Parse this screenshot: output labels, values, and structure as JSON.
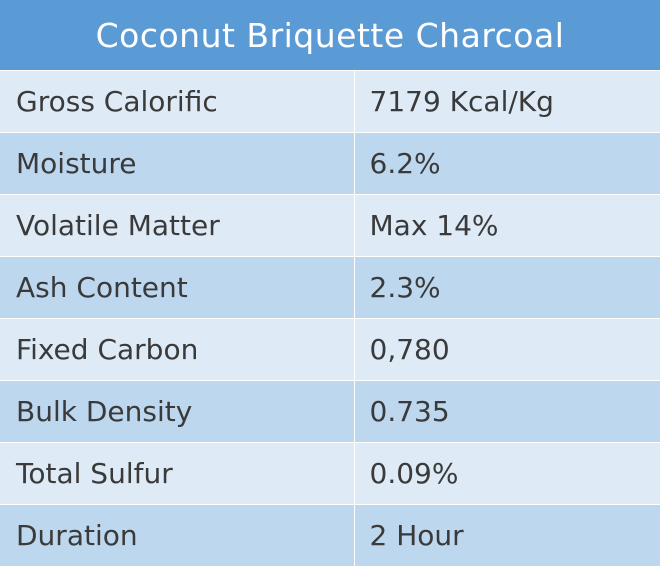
{
  "title": "Coconut Briquette Charcoal",
  "specs": [
    {
      "label": "Gross Calorific",
      "value": "7179 Kcal/Kg"
    },
    {
      "label": "Moisture",
      "value": "6.2%"
    },
    {
      "label": "Volatile Matter",
      "value": "Max 14%"
    },
    {
      "label": "Ash Content",
      "value": "2.3%"
    },
    {
      "label": "Fixed Carbon",
      "value": "0,780"
    },
    {
      "label": "Bulk Density",
      "value": "0.735"
    },
    {
      "label": "Total Sulfur",
      "value": "0.09%"
    },
    {
      "label": "Duration",
      "value": "2 Hour"
    }
  ],
  "colors": {
    "header_bg": "#5b9bd5",
    "row_light": "#deebf7",
    "row_dark": "#bdd7ee"
  }
}
